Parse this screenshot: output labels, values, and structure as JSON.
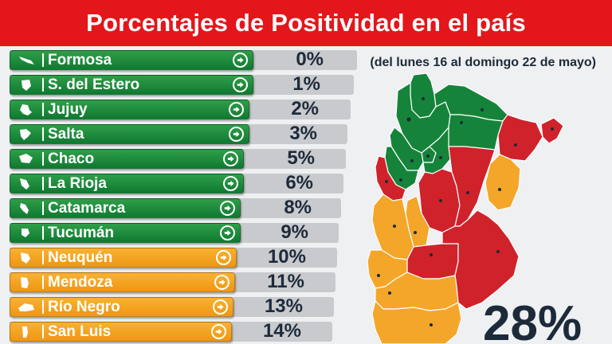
{
  "title": "Porcentajes de Positividad en el país",
  "period": "(del lunes 16 al domingo 22 de mayo)",
  "total_percent": "28%",
  "colors": {
    "banner": "#e3161b",
    "green": "#15843a",
    "orange": "#f4a62a",
    "red": "#d0222b",
    "text": "#1d2a3a"
  },
  "provinces": [
    {
      "name": "Formosa",
      "percent": "0%",
      "level": "green"
    },
    {
      "name": "S. del Estero",
      "percent": "1%",
      "level": "green"
    },
    {
      "name": "Jujuy",
      "percent": "2%",
      "level": "green"
    },
    {
      "name": "Salta",
      "percent": "3%",
      "level": "green"
    },
    {
      "name": "Chaco",
      "percent": "5%",
      "level": "green"
    },
    {
      "name": "La Rioja",
      "percent": "6%",
      "level": "green"
    },
    {
      "name": "Catamarca",
      "percent": "8%",
      "level": "green"
    },
    {
      "name": "Tucumán",
      "percent": "9%",
      "level": "green"
    },
    {
      "name": "Neuquén",
      "percent": "10%",
      "level": "orange"
    },
    {
      "name": "Mendoza",
      "percent": "11%",
      "level": "orange"
    },
    {
      "name": "Río Negro",
      "percent": "13%",
      "level": "orange"
    },
    {
      "name": "San Luis",
      "percent": "14%",
      "level": "orange"
    }
  ],
  "map": {
    "icon": "argentina-map-icon",
    "regions": [
      {
        "id": "jujuy",
        "level": "green"
      },
      {
        "id": "salta",
        "level": "green"
      },
      {
        "id": "formosa",
        "level": "green"
      },
      {
        "id": "chaco",
        "level": "green"
      },
      {
        "id": "tucuman",
        "level": "green"
      },
      {
        "id": "catamarca",
        "level": "green"
      },
      {
        "id": "santiago-del-estero",
        "level": "green"
      },
      {
        "id": "la-rioja",
        "level": "green"
      },
      {
        "id": "misiones",
        "level": "red"
      },
      {
        "id": "corrientes",
        "level": "red"
      },
      {
        "id": "san-juan",
        "level": "red"
      },
      {
        "id": "cordoba",
        "level": "red"
      },
      {
        "id": "santa-fe",
        "level": "red"
      },
      {
        "id": "entre-rios",
        "level": "orange"
      },
      {
        "id": "san-luis",
        "level": "orange"
      },
      {
        "id": "mendoza",
        "level": "orange"
      },
      {
        "id": "la-pampa",
        "level": "red"
      },
      {
        "id": "buenos-aires",
        "level": "red"
      },
      {
        "id": "neuquen",
        "level": "orange"
      },
      {
        "id": "rio-negro",
        "level": "orange"
      },
      {
        "id": "chubut",
        "level": "orange"
      }
    ]
  }
}
